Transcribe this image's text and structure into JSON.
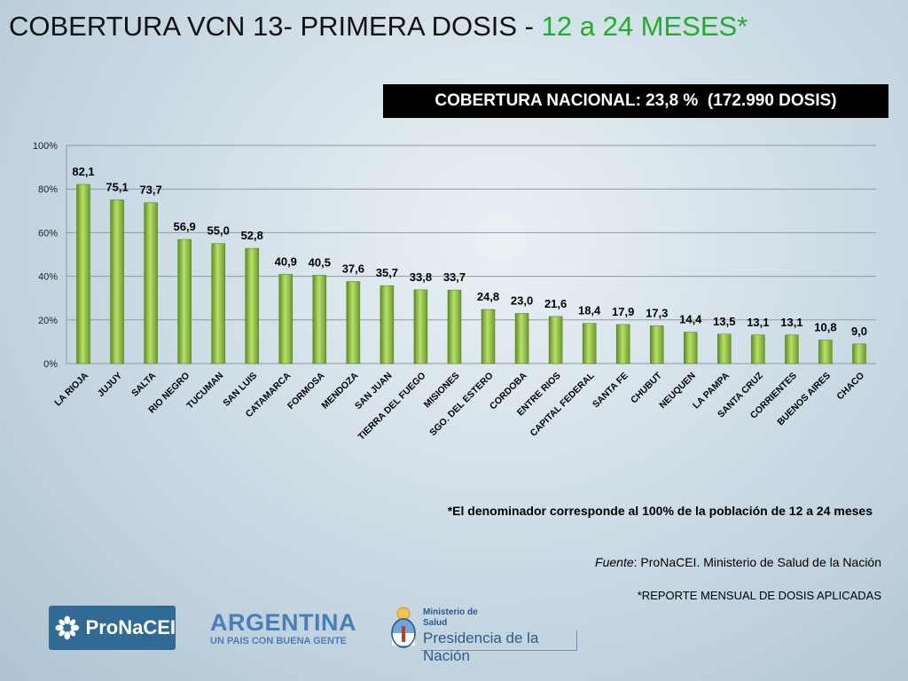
{
  "title": {
    "main": "COBERTURA VCN 13- PRIMERA DOSIS - ",
    "highlight": "12 a 24 MESES",
    "star": "*"
  },
  "national": "COBERTURA NACIONAL: 23,8 %  (172.990 DOSIS)",
  "chart_data": {
    "type": "bar",
    "categories": [
      "LA RIOJA",
      "JUJUY",
      "SALTA",
      "RIO NEGRO",
      "TUCUMAN",
      "SAN LUIS",
      "CATAMARCA",
      "FORMOSA",
      "MENDOZA",
      "SAN JUAN",
      "TIERRA DEL FUEGO",
      "MISIONES",
      "SGO. DEL ESTERO",
      "CORDOBA",
      "ENTRE RIOS",
      "CAPITAL FEDERAL",
      "SANTA FE",
      "CHUBUT",
      "NEUQUEN",
      "LA PAMPA",
      "SANTA CRUZ",
      "CORRIENTES",
      "BUENOS AIRES",
      "CHACO"
    ],
    "values": [
      82.1,
      75.1,
      73.7,
      56.9,
      55.0,
      52.8,
      40.9,
      40.5,
      37.6,
      35.7,
      33.8,
      33.7,
      24.8,
      23.0,
      21.6,
      18.4,
      17.9,
      17.3,
      14.4,
      13.5,
      13.1,
      13.1,
      10.8,
      9.0
    ],
    "value_labels": [
      "82,1",
      "75,1",
      "73,7",
      "56,9",
      "55,0",
      "52,8",
      "40,9",
      "40,5",
      "37,6",
      "35,7",
      "33,8",
      "33,7",
      "24,8",
      "23,0",
      "21,6",
      "18,4",
      "17,9",
      "17,3",
      "14,4",
      "13,5",
      "13,1",
      "13,1",
      "10,8",
      "9,0"
    ],
    "y_ticks": [
      0,
      20,
      40,
      60,
      80,
      100
    ],
    "y_tick_labels": [
      "0%",
      "20%",
      "40%",
      "60%",
      "80%",
      "100%"
    ],
    "ylim": [
      0,
      100
    ],
    "grid": true,
    "bar_color": "#8cc63f"
  },
  "footnote": "*El denominador corresponde al 100% de la población de 12 a 24 meses",
  "source": {
    "label": "Fuente",
    "text": ": ProNaCEI. Ministerio de Salud de la Nación"
  },
  "report": "*REPORTE MENSUAL DE DOSIS APLICADAS",
  "logos": {
    "pronacei": "ProNaCEI",
    "argentina": "ARGENTINA",
    "argentina_tagline": "UN PAIS CON BUENA GENTE",
    "ministerio_line1": "Ministerio de",
    "ministerio_line2": "Salud",
    "ministerio_line3": "Presidencia de la Nación"
  }
}
